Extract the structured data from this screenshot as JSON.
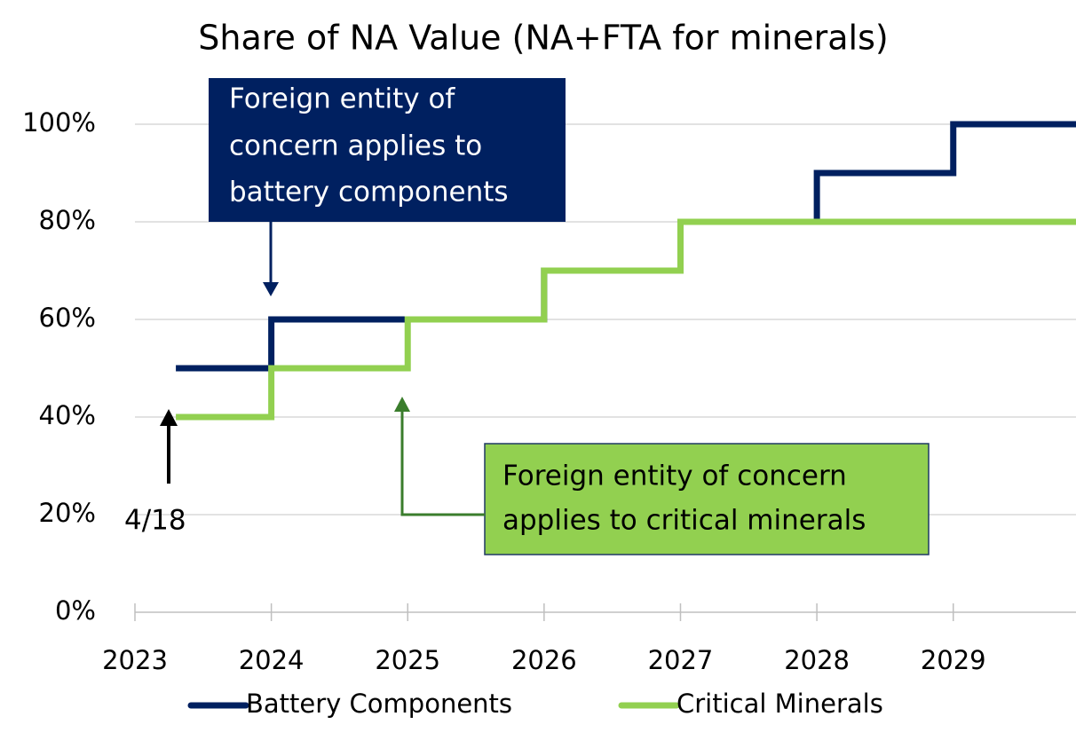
{
  "chart_data": {
    "type": "line",
    "step": "post",
    "title": "Share of NA Value (NA+FTA for minerals)",
    "x": [
      2023.3,
      2024,
      2025,
      2026,
      2027,
      2028,
      2029,
      2029.9
    ],
    "series": [
      {
        "name": "Battery Components",
        "color": "#002060",
        "values": [
          50,
          60,
          60,
          70,
          80,
          90,
          100,
          100
        ]
      },
      {
        "name": "Critical Minerals",
        "color": "#92d050",
        "values": [
          40,
          50,
          60,
          70,
          80,
          80,
          80,
          80
        ]
      }
    ],
    "xlim": [
      2023,
      2029.9
    ],
    "xticks": [
      2023,
      2024,
      2025,
      2026,
      2027,
      2028,
      2029
    ],
    "ylim": [
      0,
      100
    ],
    "yticks": [
      {
        "value": 0,
        "label": "0%"
      },
      {
        "value": 20,
        "label": "20%"
      },
      {
        "value": 40,
        "label": "40%"
      },
      {
        "value": 60,
        "label": "60%"
      },
      {
        "value": 80,
        "label": "80%"
      },
      {
        "value": 100,
        "label": "100%"
      }
    ],
    "grid": true,
    "legend": "bottom",
    "annotations": [
      {
        "lines": [
          "Foreign entity of",
          "concern applies to",
          "battery components"
        ]
      },
      {
        "lines": [
          "Foreign entity of concern",
          "applies to critical minerals"
        ]
      },
      {
        "lines": [
          "4/18"
        ]
      }
    ]
  }
}
